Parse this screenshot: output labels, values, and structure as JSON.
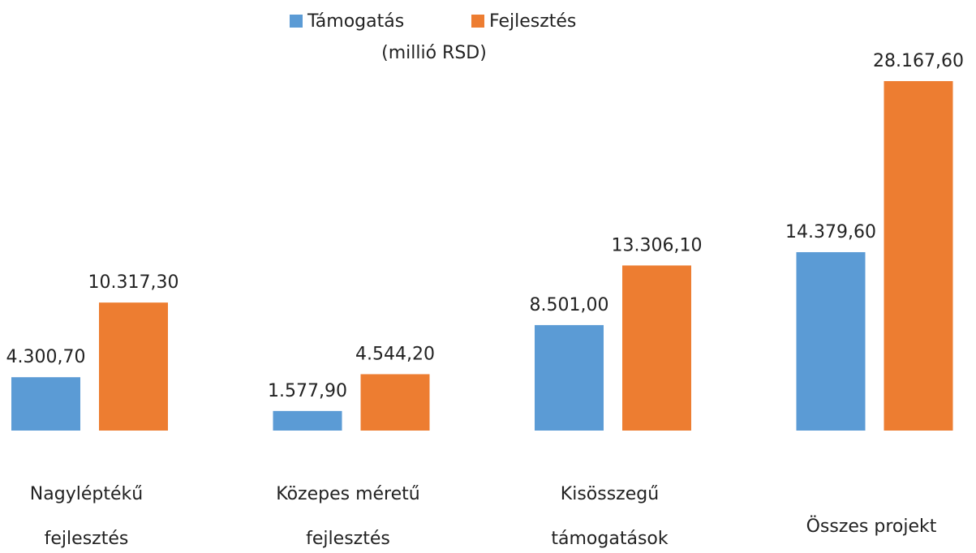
{
  "chart_data": {
    "type": "bar",
    "subtitle": "(millió RSD)",
    "categories": [
      [
        "Nagyléptékű",
        "fejlesztés"
      ],
      [
        "Közepes méretű",
        "fejlesztés"
      ],
      [
        "Kisösszegű",
        "támogatások"
      ],
      [
        "Összes projekt"
      ]
    ],
    "series": [
      {
        "name": "Támogatás",
        "color": "#5b9bd5",
        "values": [
          4300.7,
          1577.9,
          8501.0,
          14379.6
        ],
        "value_labels": [
          "4.300,70",
          "1.577,90",
          "8.501,00",
          "14.379,60"
        ]
      },
      {
        "name": "Fejlesztés",
        "color": "#ed7d31",
        "values": [
          10317.3,
          4544.2,
          13306.1,
          28167.6
        ],
        "value_labels": [
          "10.317,30",
          "4.544,20",
          "13.306,10",
          "28.167,60"
        ]
      }
    ],
    "ylim": [
      0,
      30000
    ]
  }
}
